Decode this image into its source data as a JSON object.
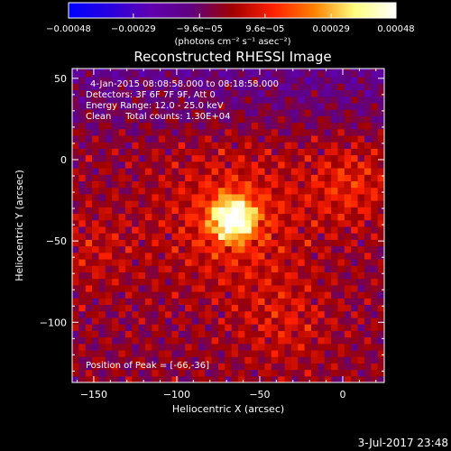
{
  "chart_data": {
    "type": "heatmap",
    "title": "Reconstructed RHESSI Image",
    "xlabel": "Heliocentric X (arcsec)",
    "ylabel": "Heliocentric Y (arcsec)",
    "xlim": [
      -163,
      25
    ],
    "ylim": [
      -137,
      56
    ],
    "x_ticks": [
      -150,
      -100,
      -50,
      0
    ],
    "y_ticks": [
      -100,
      -50,
      0,
      50
    ],
    "x_tick_labels": [
      "−150",
      "−100",
      "−50",
      "0"
    ],
    "y_tick_labels": [
      "−100",
      "−50",
      "0",
      "50"
    ],
    "colorbar": {
      "ticks": [
        -0.00048,
        -0.00029,
        -9.6e-05,
        9.6e-05,
        0.00029,
        0.00048
      ],
      "tick_labels": [
        "−0.00048",
        "−0.00029",
        "−9.6e−05",
        "9.6e−05",
        "0.00029",
        "0.00048"
      ],
      "units": "(photons cm⁻² s⁻¹ asec⁻²)",
      "range": [
        -0.00048,
        0.00048
      ],
      "colors": [
        "#0000ff",
        "#2800e0",
        "#6000b0",
        "#600080",
        "#a00000",
        "#ff2000",
        "#ff8000",
        "#ffff80",
        "#ffffff"
      ]
    },
    "annotations": {
      "time_range": "4-Jan-2015 08:08:58.000 to 08:18:58.000",
      "detectors": "Detectors: 3F 6F 7F 9F, Att 0",
      "energy": "Energy Range: 12.0 - 25.0 keV",
      "method_counts": "Clean     Total counts: 1.30E+04",
      "peak": "Position of Peak = [-66,-36]"
    },
    "peak": {
      "x": -66,
      "y": -36
    },
    "footer_date": "3-Jul-2017 23:48"
  }
}
